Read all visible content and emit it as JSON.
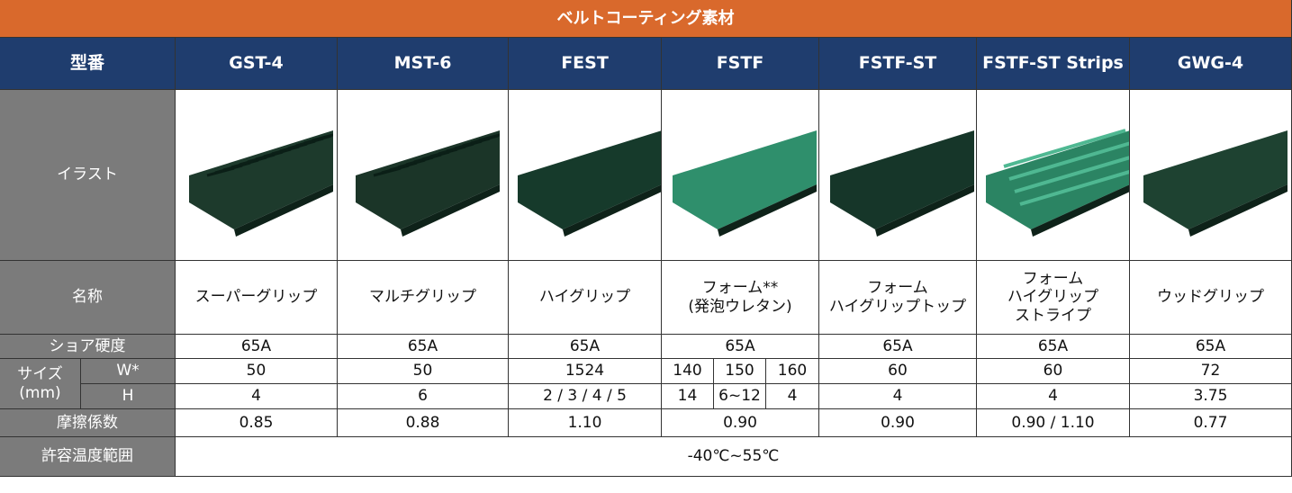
{
  "title": "ベルトコーティング素材",
  "columns": [
    "型番",
    "GST-4",
    "MST-6",
    "FEST",
    "FSTF",
    "FSTF-ST",
    "FSTF-ST Strips",
    "GWG-4"
  ],
  "illustration_label": "イラスト",
  "rows": {
    "name": {
      "label": "名称",
      "values": [
        [
          "スーパーグリップ"
        ],
        [
          "マルチグリップ"
        ],
        [
          "ハイグリップ"
        ],
        [
          "フォーム**",
          "(発泡ウレタン)"
        ],
        [
          "フォーム",
          "ハイグリップトップ"
        ],
        [
          "フォーム",
          "ハイグリップ",
          "ストライプ"
        ],
        [
          "ウッドグリップ"
        ]
      ]
    },
    "shore": {
      "label": "ショア硬度",
      "values": [
        "65A",
        "65A",
        "65A",
        "65A",
        "65A",
        "65A",
        "65A"
      ]
    },
    "size": {
      "label": [
        "サイズ",
        "(mm)"
      ],
      "width": {
        "label": "W*",
        "values": [
          "50",
          "50",
          "1524",
          [
            "140",
            "150",
            "160"
          ],
          "60",
          "60",
          "72"
        ]
      },
      "height": {
        "label": "H",
        "values": [
          "4",
          "6",
          "2 / 3 / 4 / 5",
          [
            "14",
            "6~12",
            "4"
          ],
          "4",
          "4",
          "3.75"
        ]
      }
    },
    "friction": {
      "label": "摩擦係数",
      "values": [
        "0.85",
        "0.88",
        "1.10",
        "0.90",
        "0.90",
        "0.90 / 1.10",
        "0.77"
      ]
    },
    "temperature": {
      "label": "許容温度範囲",
      "value": "-40℃~55℃"
    }
  }
}
